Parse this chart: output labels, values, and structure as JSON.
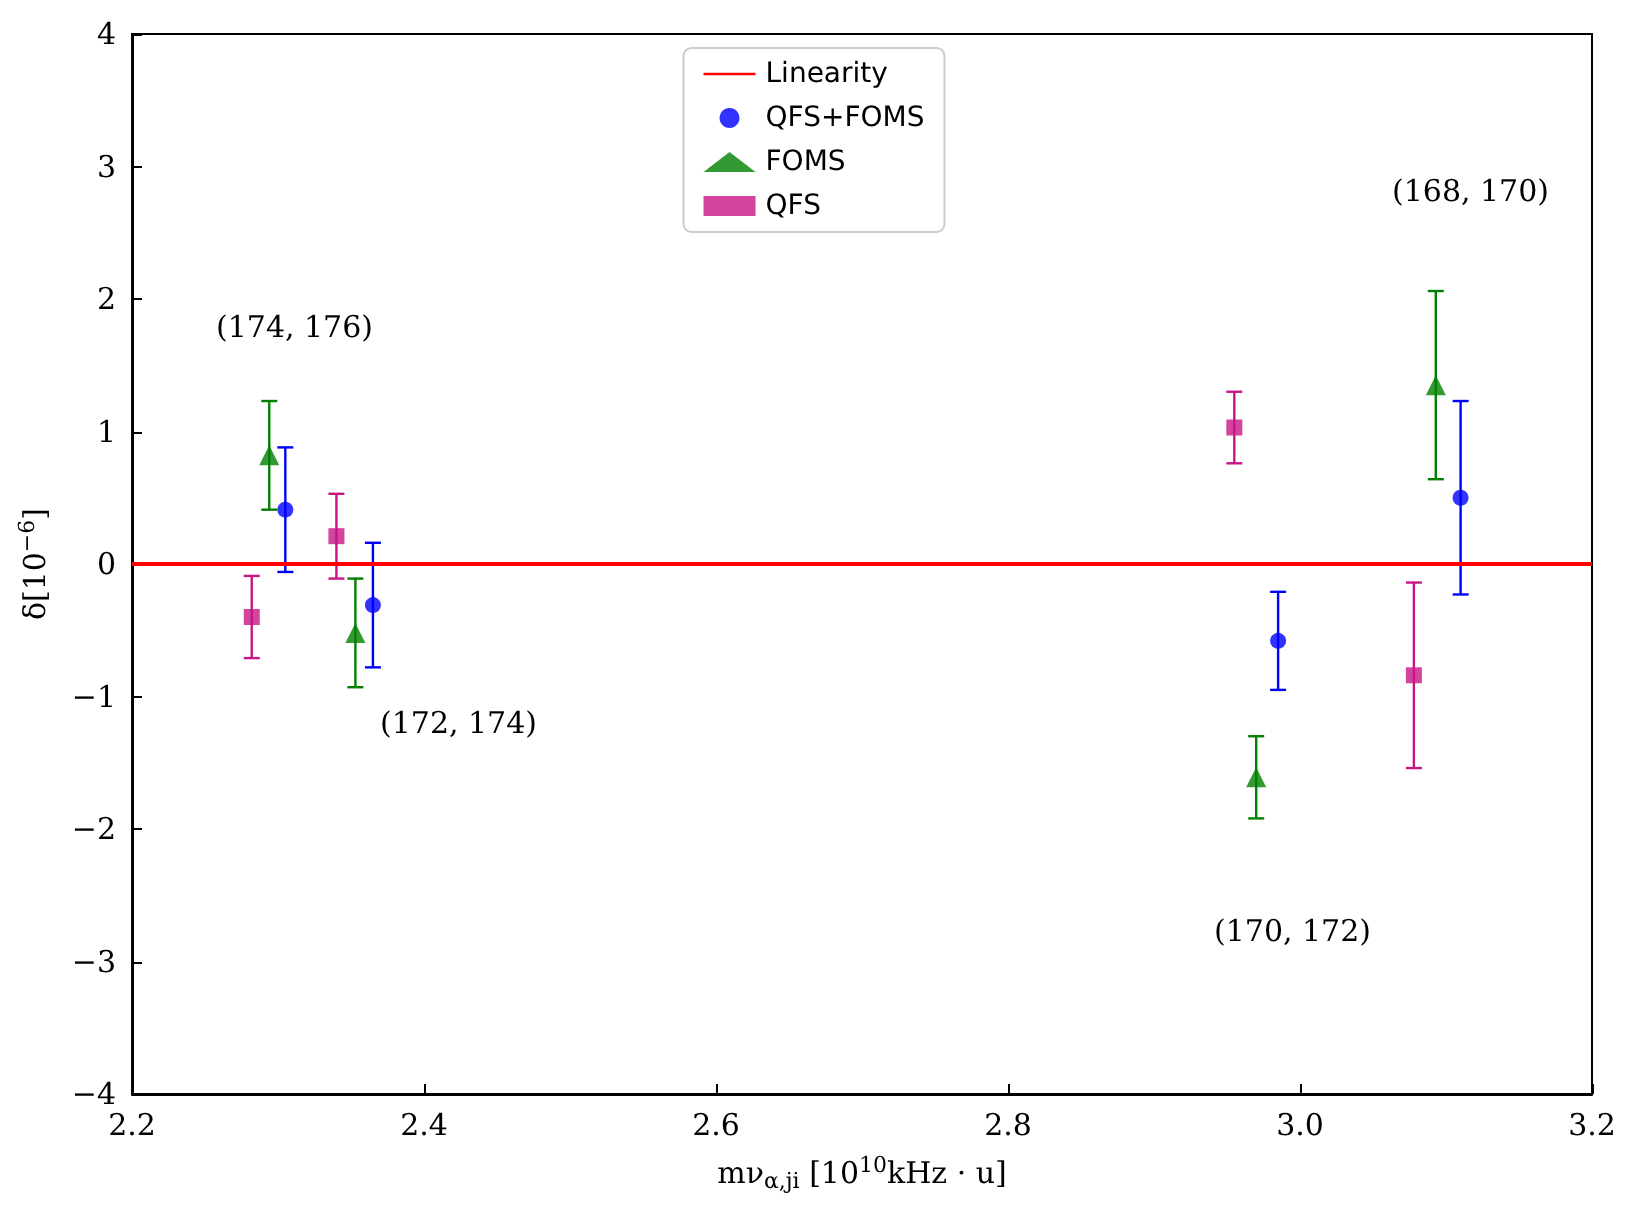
{
  "chart_data": {
    "type": "scatter",
    "xlabel": "mν$_{α,ji}$ [10$^{10}$kHz · u]",
    "ylabel": "δ[10$^{−6}$]",
    "xlim": [
      2.2,
      3.2
    ],
    "xticks": [
      2.2,
      2.4,
      2.6,
      2.8,
      {
        "value": 3,
        "label": "3.0"
      },
      3.2
    ],
    "ylim": [
      -4,
      4
    ],
    "yticks": [
      {
        "value": -4,
        "label": "−4"
      },
      {
        "value": -3,
        "label": "−3"
      },
      {
        "value": -2,
        "label": "−2"
      },
      {
        "value": -1,
        "label": "−1"
      },
      0,
      1,
      2,
      3,
      4
    ],
    "grid": false,
    "legend": "top",
    "ref_lines": [
      {
        "axis": "y",
        "value": 0,
        "label": "Linearity",
        "color": "#ff0000"
      }
    ],
    "series": [
      {
        "name": "QFS+FOMS",
        "color": "#0000ff",
        "marker": "circle",
        "x": [
          2.305,
          2.365,
          2.985,
          3.11
        ],
        "values": [
          0.41,
          -0.31,
          -0.58,
          0.5
        ],
        "errors": [
          0.47,
          0.47,
          0.37,
          0.73
        ]
      },
      {
        "name": "FOMS",
        "color": "#008000",
        "marker": "triangle",
        "x": [
          2.294,
          2.353,
          2.97,
          3.093
        ],
        "values": [
          0.82,
          -0.52,
          -1.61,
          1.35
        ],
        "errors": [
          0.41,
          0.41,
          0.31,
          0.71
        ]
      },
      {
        "name": "QFS",
        "color": "#c71585",
        "marker": "square",
        "x": [
          2.282,
          2.34,
          2.955,
          3.078
        ],
        "values": [
          -0.4,
          0.21,
          1.03,
          -0.84
        ],
        "errors": [
          0.31,
          0.32,
          0.27,
          0.7
        ]
      }
    ],
    "annotations": [
      "(174, 176)",
      "(172, 174)",
      "(170, 172)",
      "(168, 170)"
    ]
  }
}
